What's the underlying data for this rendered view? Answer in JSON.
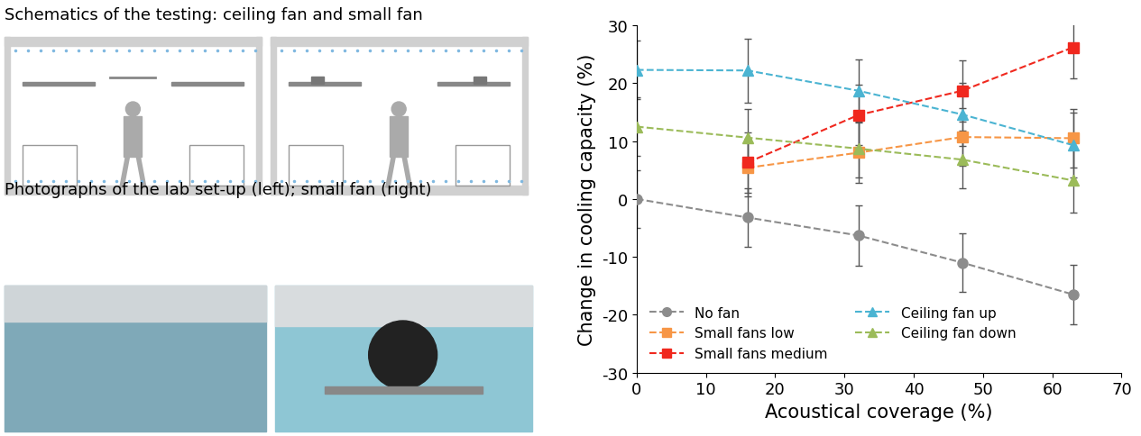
{
  "figure_texts": {
    "schematics_caption": "Schematics of the testing: ceiling fan and small fan",
    "photos_caption": "Photographs of the lab set-up (left); small fan (right)"
  },
  "chart_data": {
    "type": "line",
    "x": [
      0,
      16,
      32,
      47,
      63
    ],
    "xlabel": "Acoustical coverage (%)",
    "ylabel": "Change in cooling capacity (%)",
    "xlim": [
      0,
      70
    ],
    "xticks": [
      0,
      10,
      20,
      30,
      40,
      50,
      60,
      70
    ],
    "ylim": [
      -30,
      30
    ],
    "yticks": [
      -30,
      -20,
      -10,
      0,
      10,
      20,
      30
    ],
    "grid": false,
    "legend": "lower left",
    "line_style": "dashed",
    "series": [
      {
        "name": "No fan",
        "color": "#8c8c8c",
        "marker": "circle",
        "values": [
          0,
          -3.2,
          -6.3,
          -11,
          -16.5
        ],
        "errors": [
          5,
          5,
          5.2,
          5,
          5.2
        ]
      },
      {
        "name": "Small fans low",
        "color": "#f79646",
        "marker": "square",
        "values": [
          null,
          5.4,
          8,
          10.7,
          10.5
        ],
        "errors": [
          null,
          5,
          5.2,
          5,
          5
        ]
      },
      {
        "name": "Small fans medium",
        "color": "#f0281e",
        "marker": "square",
        "values": [
          null,
          6.3,
          14.5,
          18.7,
          26.2
        ],
        "errors": [
          null,
          5.2,
          5.2,
          5.3,
          5.3
        ]
      },
      {
        "name": "Ceiling fan up",
        "color": "#4bb4d2",
        "marker": "triangle",
        "values": [
          22.3,
          22.2,
          18.7,
          14.6,
          9.3
        ],
        "errors": [
          5,
          5.5,
          5.4,
          5.4,
          5.6
        ]
      },
      {
        "name": "Ceiling fan down",
        "color": "#9bbb59",
        "marker": "triangle",
        "values": [
          12.5,
          10.6,
          8.7,
          6.8,
          3.2
        ],
        "errors": [
          5,
          5,
          5,
          5,
          5.5
        ]
      }
    ]
  }
}
